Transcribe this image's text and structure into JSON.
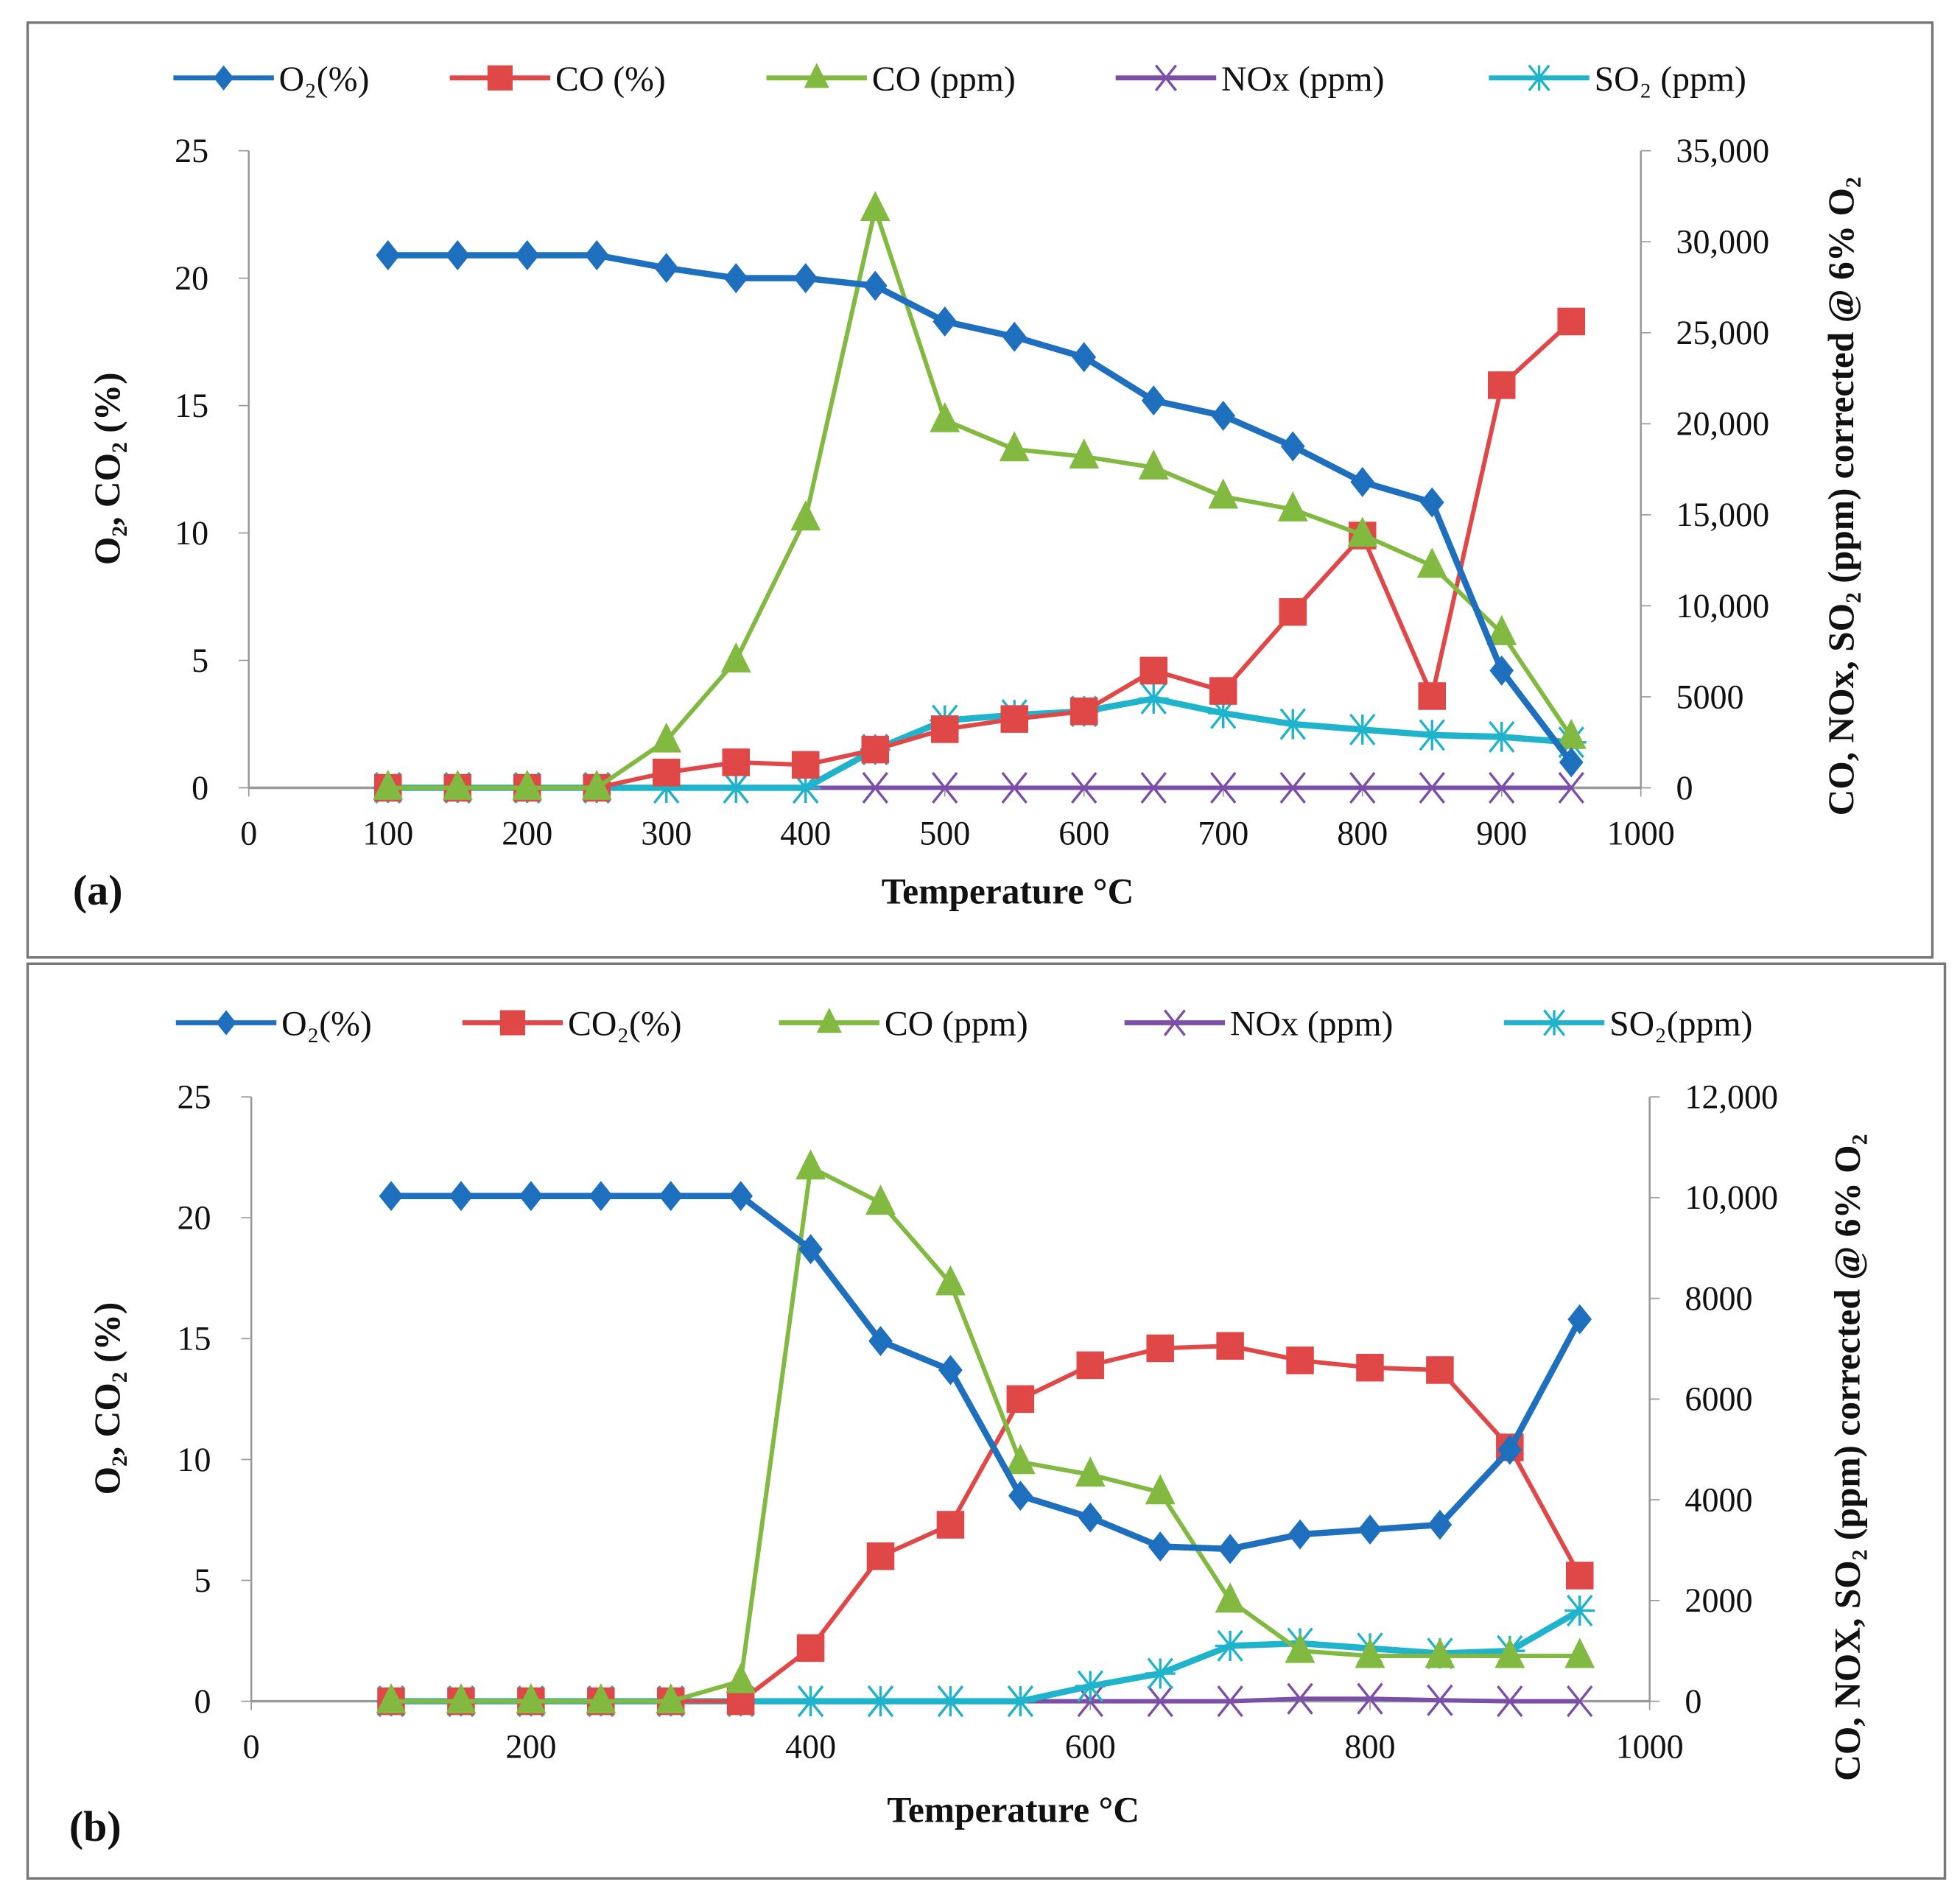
{
  "colors": {
    "O2": "#1f6fbf",
    "CO2": "#e04848",
    "CO": "#82b941",
    "NOx": "#7b4fa8",
    "SO2": "#1fb3cc"
  },
  "chart_data": [
    {
      "type": "line",
      "panel_label": "(a)",
      "xlabel": "Temperature °C",
      "ylabel": "O₂, CO₂ (%)",
      "y2label": "CO, NOx, SO₂ (ppm) corrected @ 6% O₂",
      "xlim": [
        0,
        1000
      ],
      "xticks": [
        "0",
        "100",
        "200",
        "300",
        "400",
        "500",
        "600",
        "700",
        "800",
        "900",
        "1000"
      ],
      "ylim": [
        0,
        25
      ],
      "yticks": [
        "0",
        "5",
        "10",
        "15",
        "20",
        "25"
      ],
      "y2lim": [
        0,
        35000
      ],
      "y2ticks": [
        "0",
        "5000",
        "10,000",
        "15,000",
        "20,000",
        "25,000",
        "30,000",
        "35,000"
      ],
      "x": [
        100,
        150,
        200,
        250,
        300,
        350,
        400,
        450,
        500,
        550,
        600,
        650,
        700,
        750,
        800,
        850,
        900,
        950
      ],
      "series": [
        {
          "name": "O₂(%)",
          "key": "O2",
          "axis": "left",
          "marker": "diamond",
          "values": [
            20.9,
            20.9,
            20.9,
            20.9,
            20.4,
            20.0,
            20.0,
            19.7,
            18.3,
            17.7,
            16.9,
            15.2,
            14.6,
            13.4,
            12.0,
            11.2,
            4.6,
            1.0
          ]
        },
        {
          "name": "CO  (%)",
          "key": "CO2",
          "axis": "left",
          "marker": "square",
          "values": [
            0,
            0,
            0,
            0,
            0.6,
            1.0,
            0.9,
            1.5,
            2.3,
            2.7,
            3.0,
            4.6,
            3.8,
            6.9,
            9.9,
            3.6,
            15.8,
            18.3
          ]
        },
        {
          "name": "CO (ppm)",
          "key": "CO",
          "axis": "right",
          "marker": "triangle",
          "values": [
            0,
            0,
            0,
            0,
            2600,
            7000,
            14800,
            31800,
            20200,
            18600,
            18200,
            17600,
            16000,
            15300,
            13900,
            12200,
            8500,
            2800
          ]
        },
        {
          "name": "NOx (ppm)",
          "key": "NOx",
          "axis": "right",
          "marker": "x",
          "values": [
            0,
            0,
            0,
            0,
            0,
            0,
            0,
            0,
            0,
            0,
            0,
            0,
            0,
            0,
            0,
            0,
            0,
            0
          ]
        },
        {
          "name": "SO₂  (ppm)",
          "key": "SO2",
          "axis": "right",
          "marker": "star",
          "values": [
            0,
            0,
            0,
            0,
            0,
            0,
            0,
            2100,
            3700,
            4000,
            4200,
            4900,
            4100,
            3500,
            3200,
            2900,
            2800,
            2500
          ]
        }
      ]
    },
    {
      "type": "line",
      "panel_label": "(b)",
      "xlabel": "Temperature °C",
      "ylabel": "O₂, CO₂ (%)",
      "y2label": "CO, NOX, SO₂ (ppm) corrected @ 6% O₂",
      "xlim": [
        0,
        1000
      ],
      "xticks": [
        "0",
        "200",
        "400",
        "600",
        "800",
        "1000"
      ],
      "ylim": [
        0,
        25
      ],
      "yticks": [
        "0",
        "5",
        "10",
        "15",
        "20",
        "25"
      ],
      "y2lim": [
        0,
        12000
      ],
      "y2ticks": [
        "0",
        "2000",
        "4000",
        "6000",
        "8000",
        "10,000",
        "12,000"
      ],
      "x": [
        100,
        150,
        200,
        250,
        300,
        350,
        400,
        450,
        500,
        550,
        600,
        650,
        700,
        750,
        800,
        850,
        900,
        950
      ],
      "series": [
        {
          "name": "O₂(%)",
          "key": "O2",
          "axis": "left",
          "marker": "diamond",
          "values": [
            20.9,
            20.9,
            20.9,
            20.9,
            20.9,
            20.9,
            18.7,
            14.9,
            13.7,
            8.5,
            7.6,
            6.4,
            6.3,
            6.9,
            7.1,
            7.3,
            10.4,
            15.8
          ]
        },
        {
          "name": "CO₂(%)",
          "key": "CO2",
          "axis": "left",
          "marker": "square",
          "values": [
            0,
            0,
            0,
            0,
            0,
            0,
            2.2,
            6.0,
            7.3,
            12.5,
            13.9,
            14.6,
            14.7,
            14.1,
            13.8,
            13.7,
            10.5,
            5.2
          ]
        },
        {
          "name": "CO (ppm)",
          "key": "CO",
          "axis": "right",
          "marker": "triangle",
          "values": [
            0,
            0,
            0,
            0,
            0,
            400,
            10600,
            9900,
            8300,
            4750,
            4500,
            4150,
            2000,
            1000,
            900,
            900,
            900,
            900
          ]
        },
        {
          "name": "NOx (ppm)",
          "key": "NOx",
          "axis": "right",
          "marker": "x",
          "values": [
            0,
            0,
            0,
            0,
            0,
            0,
            0,
            0,
            0,
            0,
            0,
            0,
            0,
            50,
            50,
            20,
            0,
            0
          ]
        },
        {
          "name": "SO₂(ppm)",
          "key": "SO2",
          "axis": "right",
          "marker": "star",
          "values": [
            0,
            0,
            0,
            0,
            0,
            0,
            0,
            0,
            0,
            0,
            300,
            550,
            1100,
            1150,
            1050,
            950,
            1000,
            1800
          ]
        }
      ]
    }
  ]
}
